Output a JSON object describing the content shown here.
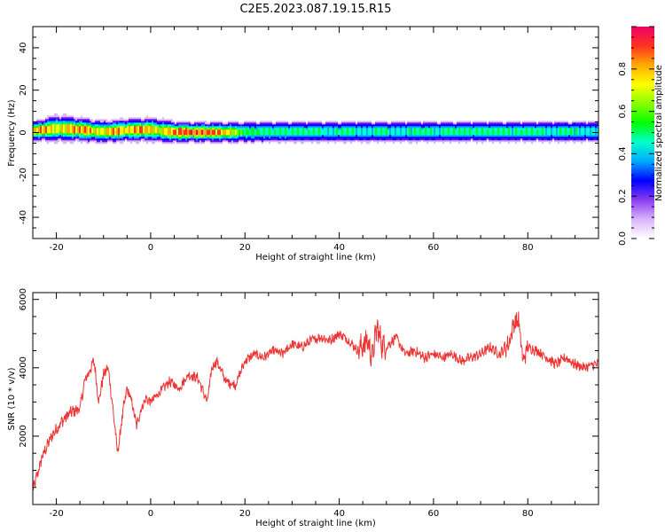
{
  "title": "C2E5.2023.087.19.15.R15",
  "colors": {
    "snr_line": "#ee3333",
    "colormap": [
      "#ffffff",
      "#ffffff",
      "#d8b4fa",
      "#a664f5",
      "#6a0ef0",
      "#0000ff",
      "#00aaff",
      "#00ffcc",
      "#00ff00",
      "#88ff00",
      "#ffff00",
      "#ffaa00",
      "#ff3322",
      "#ee0066"
    ]
  },
  "chart_data": [
    {
      "type": "heatmap",
      "xlabel": "Height of straight line (km)",
      "ylabel": "Frequency (Hz)",
      "xlim": [
        -25,
        95
      ],
      "ylim": [
        -50,
        50
      ],
      "xticks": [
        -20,
        0,
        20,
        40,
        60,
        80
      ],
      "yticks": [
        -40,
        -20,
        0,
        20,
        40
      ],
      "colorbar": {
        "label": "Normalized spectral amplitude",
        "range": [
          0,
          1
        ],
        "ticks": [
          0.0,
          0.2,
          0.4,
          0.6,
          0.8
        ]
      },
      "band_center": [
        [
          -25,
          0.8
        ],
        [
          -20,
          2.0
        ],
        [
          -15,
          1.5
        ],
        [
          -10,
          0.5
        ],
        [
          -5,
          1.2
        ],
        [
          0,
          1.5
        ],
        [
          5,
          0.3
        ],
        [
          15,
          0.2
        ],
        [
          25,
          0.5
        ],
        [
          95,
          0.6
        ]
      ],
      "band_halfwidth": [
        [
          -25,
          4.0
        ],
        [
          -20,
          5.5
        ],
        [
          -10,
          4.5
        ],
        [
          0,
          5.0
        ],
        [
          10,
          4.2
        ],
        [
          20,
          4.2
        ],
        [
          95,
          4.2
        ]
      ],
      "band_peak": [
        [
          -25,
          0.85
        ],
        [
          -23,
          0.95
        ],
        [
          -20,
          0.8
        ],
        [
          -17,
          0.9
        ],
        [
          -14,
          0.95
        ],
        [
          -11,
          0.8
        ],
        [
          -8,
          0.92
        ],
        [
          -5,
          0.85
        ],
        [
          -2,
          0.95
        ],
        [
          2,
          0.8
        ],
        [
          5,
          0.95
        ],
        [
          10,
          0.98
        ],
        [
          14,
          0.95
        ],
        [
          17,
          0.85
        ],
        [
          20,
          0.62
        ],
        [
          30,
          0.6
        ],
        [
          50,
          0.58
        ],
        [
          70,
          0.6
        ],
        [
          95,
          0.58
        ]
      ]
    },
    {
      "type": "line",
      "xlabel": "Height of straight line (km)",
      "ylabel": "SNR (10 * v/v)",
      "xlim": [
        -25,
        95
      ],
      "ylim": [
        0,
        6200
      ],
      "xticks": [
        -20,
        0,
        20,
        40,
        60,
        80
      ],
      "yticks": [
        2000,
        4000,
        6000
      ],
      "series": [
        {
          "x": [
            -25,
            -23,
            -21,
            -19,
            -17,
            -15,
            -14,
            -12,
            -11,
            -10,
            -9,
            -8,
            -7,
            -6,
            -5,
            -4,
            -3,
            -2,
            -1,
            0,
            2,
            4,
            6,
            8,
            10,
            12,
            13,
            14,
            16,
            18,
            20,
            22,
            24,
            26,
            28,
            30,
            32,
            34,
            36,
            38,
            40,
            42,
            44,
            46,
            47,
            48,
            49,
            50,
            52,
            54,
            56,
            58,
            60,
            62,
            64,
            66,
            68,
            70,
            72,
            74,
            76,
            77,
            78,
            79,
            80,
            82,
            84,
            86,
            88,
            90,
            92,
            94,
            95
          ],
          "y": [
            400,
            1400,
            2000,
            2400,
            2700,
            2800,
            3600,
            4200,
            3000,
            3800,
            4000,
            2800,
            1500,
            2600,
            3400,
            3000,
            2300,
            2800,
            3100,
            3000,
            3300,
            3600,
            3400,
            3800,
            3700,
            3000,
            4000,
            4200,
            3600,
            3500,
            4200,
            4400,
            4300,
            4500,
            4400,
            4700,
            4600,
            4800,
            4900,
            4800,
            5000,
            4800,
            4500,
            4800,
            4300,
            5200,
            4700,
            4600,
            4900,
            4400,
            4500,
            4300,
            4400,
            4300,
            4400,
            4200,
            4300,
            4400,
            4600,
            4400,
            4700,
            5300,
            5400,
            4200,
            4600,
            4500,
            4300,
            4100,
            4300,
            4100,
            4000,
            4100,
            4100
          ]
        }
      ]
    }
  ]
}
